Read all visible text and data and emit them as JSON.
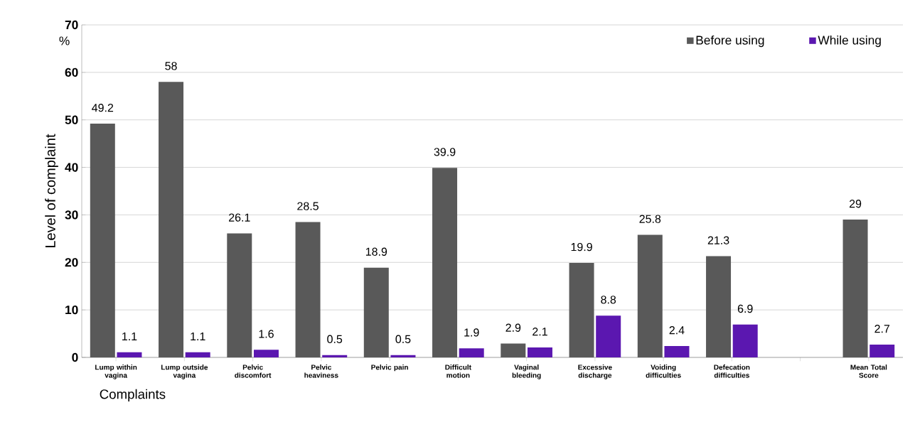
{
  "chart_data": {
    "type": "bar",
    "xlabel": "Complaints",
    "ylabel": "Level of complaint",
    "annotations": [
      "%"
    ],
    "categories": [
      "Lump within vagina",
      "Lump outside vagina",
      "Pelvic discomfort",
      "Pelvic heaviness",
      "Pelvic pain",
      "Difficult motion",
      "Vaginal bleeding",
      "Excessive discharge",
      "Voiding difficulties",
      "Defecation difficulties",
      null,
      "Mean Total Score"
    ],
    "series": [
      {
        "name": "Before using",
        "color": "#595959",
        "values": [
          49.2,
          58,
          26.1,
          28.5,
          18.9,
          39.9,
          2.9,
          19.9,
          25.8,
          21.3,
          null,
          29
        ]
      },
      {
        "name": "While using",
        "color": "#5b17b0",
        "values": [
          1.1,
          1.1,
          1.6,
          0.5,
          0.5,
          1.9,
          2.1,
          8.8,
          2.4,
          6.9,
          null,
          2.7
        ]
      }
    ],
    "ylim": [
      0,
      70
    ],
    "yticks": [
      0,
      10,
      20,
      30,
      40,
      50,
      60,
      70
    ],
    "grid": "y",
    "legend": "top right",
    "data_labels": true
  }
}
